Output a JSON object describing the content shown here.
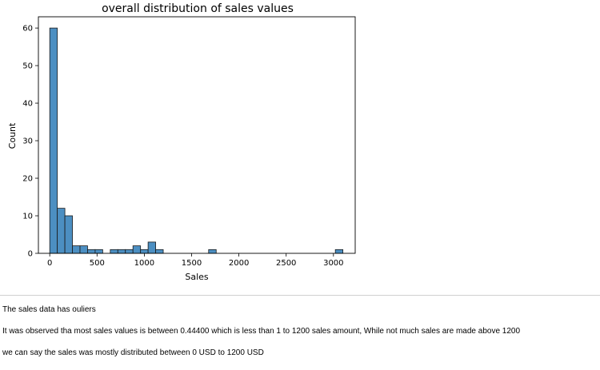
{
  "chart_data": {
    "type": "bar",
    "title": "overall distribution of sales values",
    "xlabel": "Sales",
    "ylabel": "Count",
    "xlim": [
      -120,
      3230
    ],
    "ylim": [
      0,
      63
    ],
    "xticks": [
      0,
      500,
      1000,
      1500,
      2000,
      2500,
      3000
    ],
    "yticks": [
      0,
      10,
      20,
      30,
      40,
      50,
      60
    ],
    "grid": false,
    "bar_color": "#4c8fc2",
    "edge_color": "#1a1a1a",
    "bin_width": 80,
    "bins": [
      {
        "x0": 0,
        "count": 60
      },
      {
        "x0": 80,
        "count": 12
      },
      {
        "x0": 160,
        "count": 10
      },
      {
        "x0": 240,
        "count": 2
      },
      {
        "x0": 320,
        "count": 2
      },
      {
        "x0": 400,
        "count": 1
      },
      {
        "x0": 480,
        "count": 1
      },
      {
        "x0": 560,
        "count": 0
      },
      {
        "x0": 640,
        "count": 1
      },
      {
        "x0": 720,
        "count": 1
      },
      {
        "x0": 800,
        "count": 1
      },
      {
        "x0": 880,
        "count": 2
      },
      {
        "x0": 960,
        "count": 1
      },
      {
        "x0": 1040,
        "count": 3
      },
      {
        "x0": 1120,
        "count": 1
      },
      {
        "x0": 1680,
        "count": 1
      },
      {
        "x0": 3020,
        "count": 1
      }
    ]
  },
  "notes": [
    "The sales data has ouliers",
    "It was observed tha most sales values is between 0.44400 which is less than 1 to 1200 sales amount, While not much sales are made above 1200",
    "we can say the sales was mostly distributed between 0 USD to 1200 USD"
  ]
}
